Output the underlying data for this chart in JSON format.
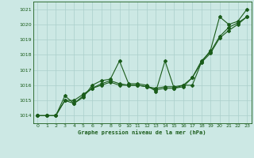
{
  "title": "Graphe pression niveau de la mer (hPa)",
  "x_values": [
    0,
    1,
    2,
    3,
    4,
    5,
    6,
    7,
    8,
    9,
    10,
    11,
    12,
    13,
    14,
    15,
    16,
    17,
    18,
    19,
    20,
    21,
    22,
    23
  ],
  "line1": [
    1014.0,
    1014.0,
    1014.0,
    1015.3,
    1014.8,
    1015.2,
    1016.0,
    1016.3,
    1016.4,
    1017.6,
    1016.1,
    1016.1,
    1016.0,
    1015.6,
    1017.6,
    1015.8,
    1016.0,
    1016.0,
    1017.5,
    1018.3,
    1020.5,
    1020.0,
    1020.2,
    1021.0
  ],
  "line2": [
    1014.0,
    1014.0,
    1014.0,
    1015.0,
    1014.8,
    1015.3,
    1015.8,
    1016.1,
    1016.3,
    1016.1,
    1016.0,
    1016.0,
    1015.9,
    1015.8,
    1015.9,
    1015.9,
    1016.0,
    1016.5,
    1017.6,
    1018.2,
    1019.2,
    1019.8,
    1020.1,
    1020.5
  ],
  "line3": [
    1014.0,
    1014.0,
    1014.0,
    1015.0,
    1015.0,
    1015.4,
    1015.8,
    1016.0,
    1016.2,
    1016.0,
    1016.0,
    1016.0,
    1015.9,
    1015.7,
    1015.8,
    1015.8,
    1015.9,
    1016.5,
    1017.5,
    1018.1,
    1019.1,
    1019.6,
    1020.0,
    1020.5
  ],
  "bg_color": "#cce8e4",
  "line_color": "#1a5c1a",
  "grid_color": "#aacfcb",
  "ylim": [
    1013.5,
    1021.5
  ],
  "yticks": [
    1014,
    1015,
    1016,
    1017,
    1018,
    1019,
    1020,
    1021
  ],
  "xticks": [
    0,
    1,
    2,
    3,
    4,
    5,
    6,
    7,
    8,
    9,
    10,
    11,
    12,
    13,
    14,
    15,
    16,
    17,
    18,
    19,
    20,
    21,
    22,
    23
  ],
  "figw": 3.2,
  "figh": 2.0,
  "dpi": 100
}
